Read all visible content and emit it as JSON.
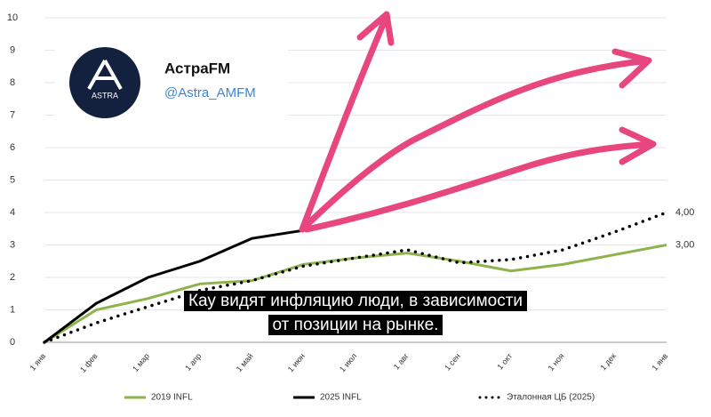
{
  "chart_data": {
    "type": "line",
    "categories": [
      "1 янв",
      "1 фев",
      "1 мар",
      "1 апр",
      "1 май",
      "1 июн",
      "1 июл",
      "1 авг",
      "1 сен",
      "1 окт",
      "1 ноя",
      "1 дек",
      "1 янв"
    ],
    "ylim": [
      0,
      10
    ],
    "yticks": [
      0,
      1,
      2,
      3,
      4,
      5,
      6,
      7,
      8,
      9,
      10
    ],
    "grid": true,
    "series": [
      {
        "name": "2019 INFL",
        "color": "#8db34a",
        "style": "solid",
        "values": [
          0,
          1.0,
          1.35,
          1.8,
          1.9,
          2.4,
          2.6,
          2.75,
          2.5,
          2.2,
          2.4,
          2.7,
          3.0
        ],
        "value_labels": [
          null,
          null,
          null,
          null,
          null,
          null,
          null,
          null,
          null,
          null,
          null,
          null,
          "3,00"
        ]
      },
      {
        "name": "2025 INFL",
        "color": "#000000",
        "style": "solid",
        "values": [
          0,
          1.2,
          2.0,
          2.5,
          3.2,
          3.45,
          null,
          null,
          null,
          null,
          null,
          null,
          null
        ]
      },
      {
        "name": "Эталонная ЦБ (2025)",
        "color": "#000000",
        "style": "dotted",
        "values": [
          0,
          0.6,
          1.1,
          1.6,
          1.9,
          2.35,
          2.6,
          2.85,
          2.45,
          2.55,
          2.85,
          3.4,
          4.0
        ],
        "value_labels": [
          null,
          null,
          null,
          null,
          null,
          null,
          null,
          null,
          null,
          null,
          null,
          null,
          "4,00"
        ]
      }
    ]
  },
  "overlay": {
    "card": {
      "logo": "ASTRA",
      "name": "АстраFM",
      "handle": "@Astra_AMFM"
    },
    "caption": [
      "Кау видят инфляцию люди, в зависимости",
      "от позиции  на рынке."
    ]
  }
}
